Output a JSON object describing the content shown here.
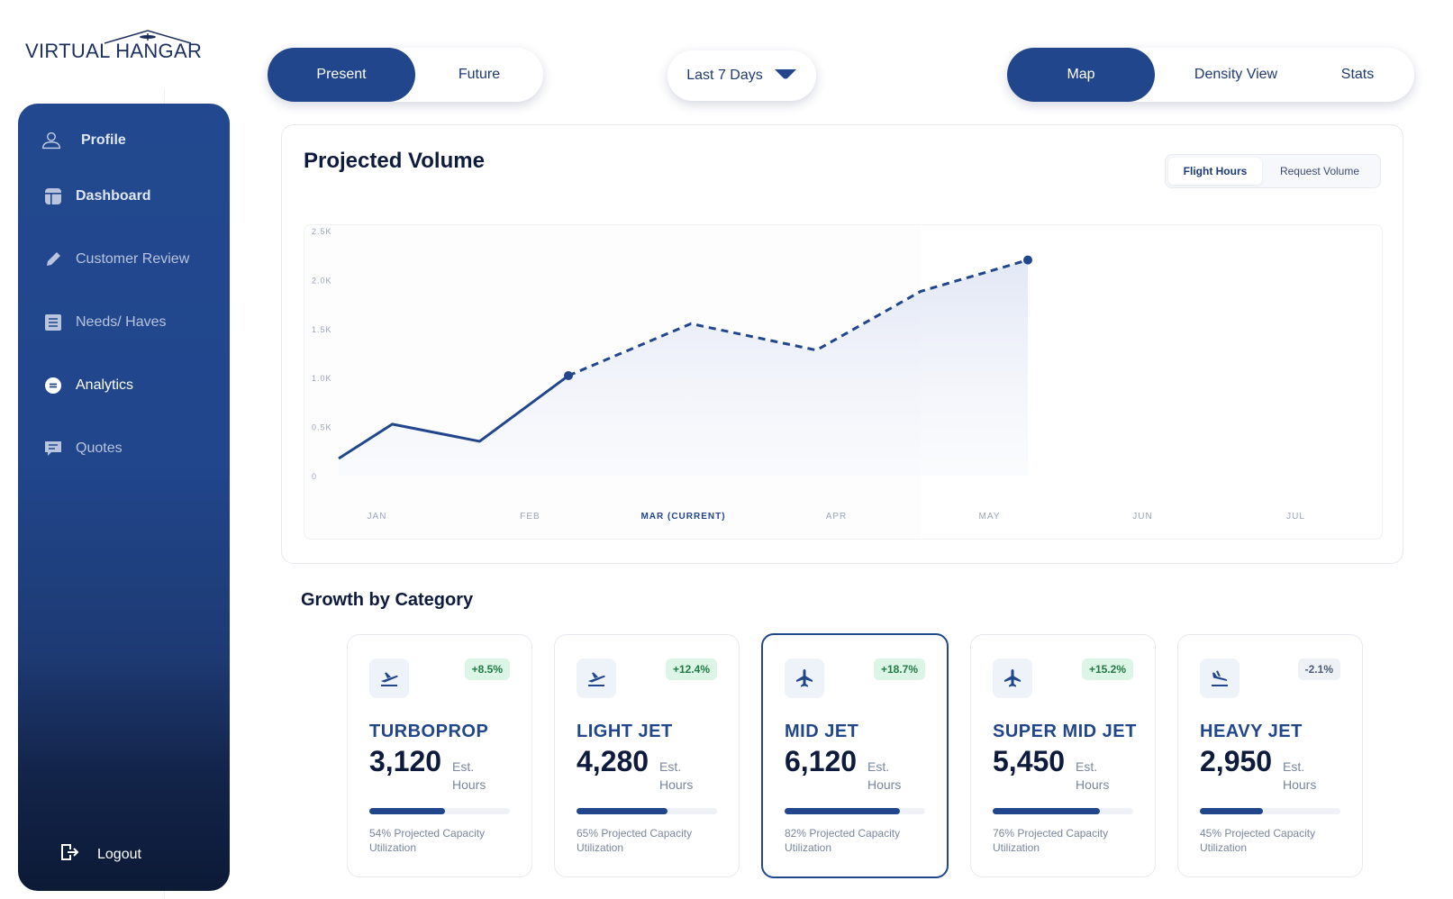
{
  "brand": {
    "name": "VIRTUAL HANGAR"
  },
  "sidebar": {
    "items": [
      {
        "label": "Profile",
        "icon": "user-icon"
      },
      {
        "label": "Dashboard",
        "icon": "dashboard-icon"
      },
      {
        "label": "Customer Review",
        "icon": "pencil-icon"
      },
      {
        "label": "Needs/ Haves",
        "icon": "list-icon"
      },
      {
        "label": "Analytics",
        "icon": "analytics-icon",
        "active": true
      },
      {
        "label": "Quotes",
        "icon": "chat-icon"
      }
    ],
    "logout": "Logout"
  },
  "time_toggle": {
    "present": "Present",
    "future": "Future",
    "selected": "Present"
  },
  "range": {
    "label": "Last 7 Days"
  },
  "view_toggle": {
    "map": "Map",
    "density": "Density View",
    "stats": "Stats",
    "selected": "Map"
  },
  "chart": {
    "title": "Projected Volume",
    "metric_flight_hours": "Flight Hours",
    "metric_request_volume": "Request Volume",
    "selected_metric": "Flight Hours"
  },
  "chart_data": {
    "type": "line",
    "title": "Projected Volume",
    "xlabel": "",
    "ylabel": "",
    "x_ticks": [
      "JAN",
      "FEB",
      "MAR (CURRENT)",
      "APR",
      "MAY",
      "JUN",
      "JUL"
    ],
    "current_tick": "MAR (CURRENT)",
    "y_ticks": [
      "0",
      "0.5K",
      "1.0K",
      "1.5K",
      "2.0K",
      "2.5K"
    ],
    "ylim": [
      0,
      2500
    ],
    "series": [
      {
        "style": "solid",
        "points": [
          [
            0,
            175
          ],
          [
            0.35,
            525
          ],
          [
            0.92,
            350
          ],
          [
            1.5,
            1020
          ]
        ]
      },
      {
        "style": "dashed",
        "points": [
          [
            1.5,
            1020
          ],
          [
            2.3,
            1550
          ],
          [
            3.12,
            1280
          ],
          [
            3.8,
            1880
          ],
          [
            4.5,
            2200
          ]
        ]
      }
    ],
    "grid": false,
    "legend": "none"
  },
  "growth": {
    "title": "Growth by Category",
    "unit_line1": "Est.",
    "unit_line2": "Hours",
    "categories": [
      {
        "name": "TURBOPROP",
        "value": "3,120",
        "change": "+8.5%",
        "trend": "up",
        "utilization": 0.54,
        "caption": "54% Projected Capacity Utilization",
        "icon": "plane-takeoff-icon"
      },
      {
        "name": "LIGHT JET",
        "value": "4,280",
        "change": "+12.4%",
        "trend": "up",
        "utilization": 0.65,
        "caption": "65% Projected Capacity Utilization",
        "icon": "plane-takeoff-icon"
      },
      {
        "name": "MID JET",
        "value": "6,120",
        "change": "+18.7%",
        "trend": "up",
        "utilization": 0.82,
        "caption": "82% Projected Capacity Utilization",
        "icon": "plane-icon",
        "selected": true
      },
      {
        "name": "SUPER MID JET",
        "value": "5,450",
        "change": "+15.2%",
        "trend": "up",
        "utilization": 0.76,
        "caption": "76% Projected Capacity Utilization",
        "icon": "plane-icon"
      },
      {
        "name": "HEAVY JET",
        "value": "2,950",
        "change": "-2.1%",
        "trend": "down",
        "utilization": 0.45,
        "caption": "45% Projected Capacity Utilization",
        "icon": "plane-landing-icon"
      }
    ]
  },
  "colors": {
    "primary": "#21468c",
    "positive": "#1f7a45",
    "positive_bg": "#dcf5e6"
  }
}
